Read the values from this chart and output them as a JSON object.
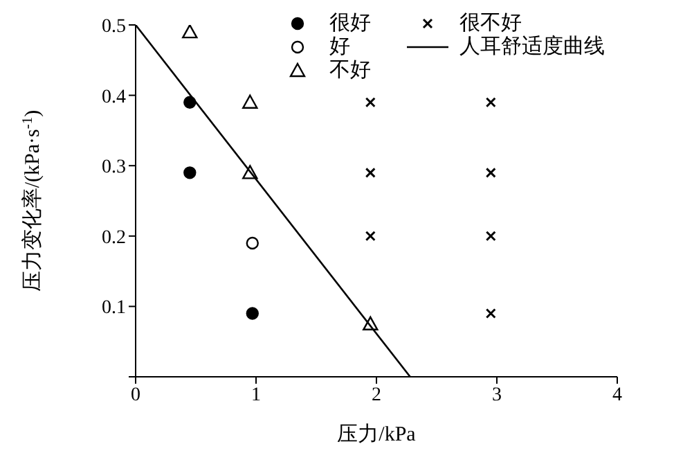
{
  "chart_data": {
    "type": "scatter",
    "xlabel": "压力/kPa",
    "ylabel": "压力变化率/(kPa·s$^{-1}$)",
    "xlim": [
      0,
      4
    ],
    "xticks": [
      0,
      1,
      2,
      3,
      4
    ],
    "ylim": [
      0,
      0.5
    ],
    "yticks": [
      {
        "value": 0,
        "label": null
      },
      0.1,
      0.2,
      0.3,
      0.4,
      0.5
    ],
    "legend": "top right",
    "series": [
      {
        "name": "很好",
        "marker": "circle",
        "color": "#000000",
        "x": [
          0.45,
          0.45,
          0.97
        ],
        "values": [
          0.39,
          0.29,
          0.09
        ]
      },
      {
        "name": "好",
        "marker": "circle",
        "color": "#ffffff",
        "x": [
          0.97
        ],
        "values": [
          0.19
        ]
      },
      {
        "name": "不好",
        "marker": "triangle",
        "color": "#ffffff",
        "x": [
          0.45,
          0.95,
          0.95,
          1.95
        ],
        "values": [
          0.49,
          0.39,
          0.29,
          0.075
        ]
      },
      {
        "name": "很不好",
        "marker": "cross",
        "color": "#000000",
        "x": [
          1.95,
          2.95,
          1.95,
          2.95,
          1.95,
          2.95,
          2.95
        ],
        "values": [
          0.39,
          0.39,
          0.29,
          0.29,
          0.2,
          0.2,
          0.09
        ]
      },
      {
        "name": "人耳舒适度曲线",
        "type": "line",
        "marker": "none",
        "line_style": "solid",
        "color": "#000000",
        "x": [
          0,
          2.28
        ],
        "values": [
          0.5,
          0
        ]
      }
    ]
  }
}
